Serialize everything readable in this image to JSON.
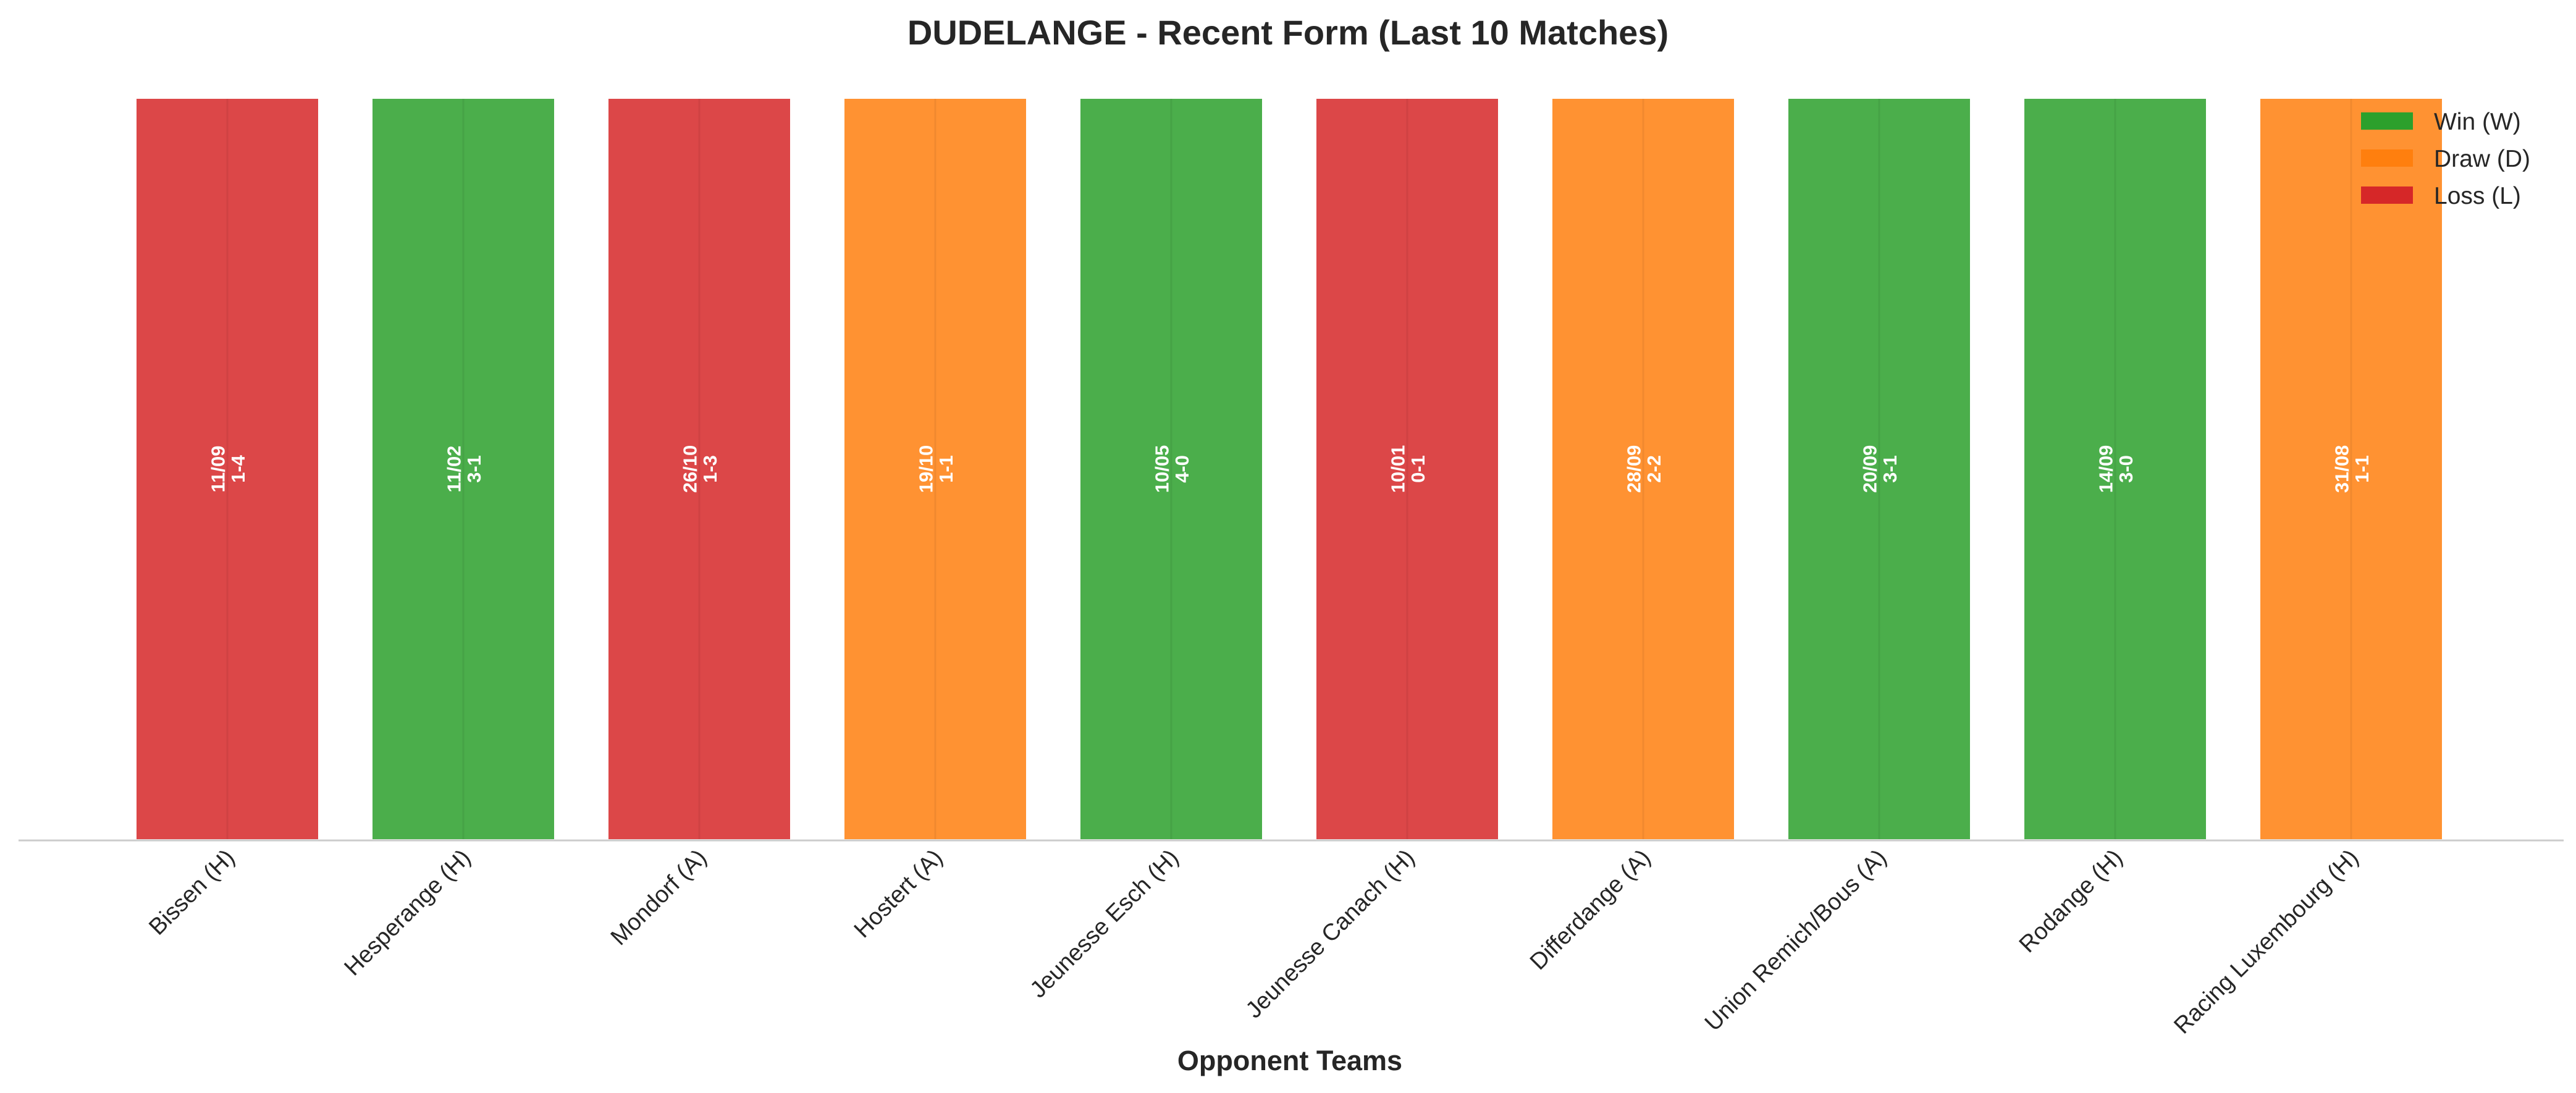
{
  "chart_data": {
    "type": "bar",
    "title": "DUDELANGE - Recent Form (Last 10 Matches)",
    "xlabel": "Opponent Teams",
    "ylabel": "",
    "grid": false,
    "legend_position": "top-right",
    "categories": [
      "Bissen (H)",
      "Hesperange (H)",
      "Mondorf (A)",
      "Hostert (A)",
      "Jeunesse Esch (H)",
      "Jeunesse Canach (H)",
      "Differdange (A)",
      "Union Remich/Bous (A)",
      "Rodange (H)",
      "Racing Luxembourg (H)"
    ],
    "values": [
      1,
      1,
      1,
      1,
      1,
      1,
      1,
      1,
      1,
      1
    ],
    "ylim": [
      0,
      1
    ],
    "results": [
      "L",
      "W",
      "L",
      "D",
      "W",
      "L",
      "D",
      "W",
      "W",
      "D"
    ],
    "dates": [
      "11/09",
      "11/02",
      "26/10",
      "19/10",
      "10/05",
      "10/01",
      "28/09",
      "20/09",
      "14/09",
      "31/08"
    ],
    "scores": [
      "1-4",
      "3-1",
      "1-3",
      "1-1",
      "4-0",
      "0-1",
      "2-2",
      "3-1",
      "3-0",
      "1-1"
    ],
    "legend": [
      {
        "key": "W",
        "label": "Win (W)",
        "color": "#2ca02c"
      },
      {
        "key": "D",
        "label": "Draw (D)",
        "color": "#ff7f0e"
      },
      {
        "key": "L",
        "label": "Loss (L)",
        "color": "#d62728"
      }
    ],
    "colors": {
      "W": "#2ca02c",
      "D": "#ff7f0e",
      "L": "#d62728"
    }
  }
}
